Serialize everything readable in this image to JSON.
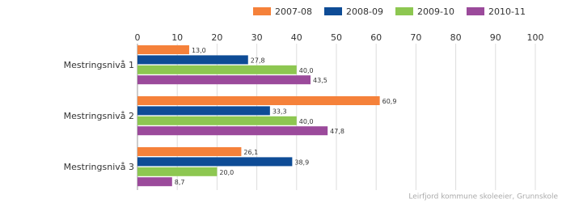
{
  "chart_data": {
    "type": "hbar",
    "categories": [
      "Mestringsnivå 1",
      "Mestringsnivå 2",
      "Mestringsnivå 3"
    ],
    "series": [
      {
        "name": "2007-08",
        "color": "#f5813a",
        "values": [
          13.0,
          60.9,
          26.1
        ],
        "value_labels": [
          "13,0",
          "60,9",
          "26,1"
        ]
      },
      {
        "name": "2008-09",
        "color": "#0e4c96",
        "values": [
          27.8,
          33.3,
          38.9
        ],
        "value_labels": [
          "27,8",
          "33,3",
          "38,9"
        ]
      },
      {
        "name": "2009-10",
        "color": "#8dc751",
        "values": [
          40.0,
          40.0,
          20.0
        ],
        "value_labels": [
          "40,0",
          "40,0",
          "20,0"
        ]
      },
      {
        "name": "2010-11",
        "color": "#9b4a9b",
        "values": [
          43.5,
          47.8,
          8.7
        ],
        "value_labels": [
          "43,5",
          "47,8",
          "8,7"
        ]
      }
    ],
    "xlim": [
      0,
      100
    ],
    "xticks": [
      0,
      10,
      20,
      30,
      40,
      50,
      60,
      70,
      80,
      90,
      100
    ],
    "grid": true,
    "source": "Leirfjord kommune skoleeier, Grunnskole"
  }
}
